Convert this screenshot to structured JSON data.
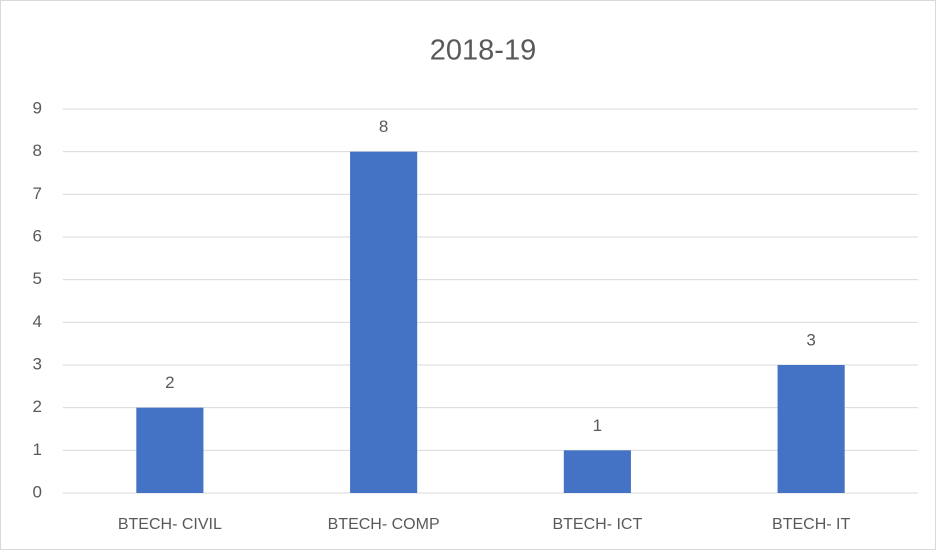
{
  "chart_data": {
    "type": "bar",
    "title": "2018-19",
    "categories": [
      "BTECH- CIVIL",
      "BTECH- COMP",
      "BTECH- ICT",
      "BTECH- IT"
    ],
    "values": [
      2,
      8,
      1,
      3
    ],
    "color": "#4472c4",
    "ylim": [
      0,
      9
    ],
    "yticks": [
      0,
      1,
      2,
      3,
      4,
      5,
      6,
      7,
      8,
      9
    ],
    "grid": true
  }
}
